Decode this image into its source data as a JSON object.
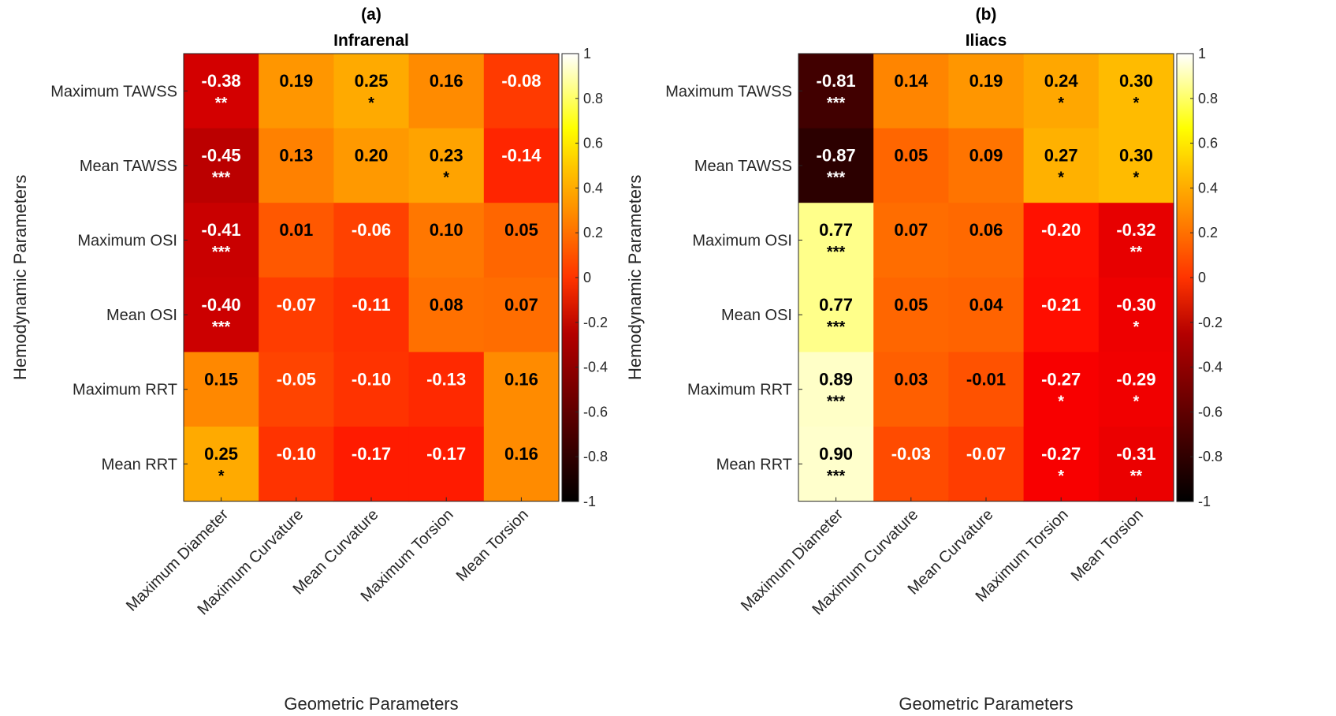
{
  "figure": {
    "shared_row_labels": [
      "Maximum TAWSS",
      "Mean TAWSS",
      "Maximum OSI",
      "Mean OSI",
      "Maximum RRT",
      "Mean RRT"
    ],
    "shared_col_labels": [
      "Maximum Diameter",
      "Maximum Curvature",
      "Mean Curvature",
      "Maximum Torsion",
      "Mean Torsion"
    ]
  },
  "chart_data": [
    {
      "type": "heatmap",
      "panel": "(a)",
      "title": "Infrarenal",
      "xlabel": "Geometric Parameters",
      "ylabel": "Hemodynamic Parameters",
      "rows": [
        "Maximum TAWSS",
        "Mean TAWSS",
        "Maximum OSI",
        "Mean OSI",
        "Maximum RRT",
        "Mean RRT"
      ],
      "columns": [
        "Maximum Diameter",
        "Maximum Curvature",
        "Mean Curvature",
        "Maximum Torsion",
        "Mean Torsion"
      ],
      "values": [
        [
          -0.38,
          0.19,
          0.25,
          0.16,
          -0.08
        ],
        [
          -0.45,
          0.13,
          0.2,
          0.23,
          -0.14
        ],
        [
          -0.41,
          0.01,
          -0.06,
          0.1,
          0.05
        ],
        [
          -0.4,
          -0.07,
          -0.11,
          0.08,
          0.07
        ],
        [
          0.15,
          -0.05,
          -0.1,
          -0.13,
          0.16
        ],
        [
          0.25,
          -0.1,
          -0.17,
          -0.17,
          0.16
        ]
      ],
      "labels": [
        [
          "-0.38",
          "0.19",
          "0.25",
          "0.16",
          "-0.08"
        ],
        [
          "-0.45",
          "0.13",
          "0.20",
          "0.23",
          "-0.14"
        ],
        [
          "-0.41",
          "0.01",
          "-0.06",
          "0.10",
          "0.05"
        ],
        [
          "-0.40",
          "-0.07",
          "-0.11",
          "0.08",
          "0.07"
        ],
        [
          "0.15",
          "-0.05",
          "-0.10",
          "-0.13",
          "0.16"
        ],
        [
          "0.25",
          "-0.10",
          "-0.17",
          "-0.17",
          "0.16"
        ]
      ],
      "significance": [
        [
          "**",
          "",
          "*",
          "",
          ""
        ],
        [
          "***",
          "",
          "",
          "*",
          ""
        ],
        [
          "***",
          "",
          "",
          "",
          ""
        ],
        [
          "***",
          "",
          "",
          "",
          ""
        ],
        [
          "",
          "",
          "",
          "",
          ""
        ],
        [
          "*",
          "",
          "",
          "",
          ""
        ]
      ],
      "colorbar": {
        "range": [
          -1,
          1
        ],
        "ticks": [
          "1",
          "0.8",
          "0.6",
          "0.4",
          "0.2",
          "0",
          "-0.2",
          "-0.4",
          "-0.6",
          "-0.8",
          "-1"
        ],
        "colormap": "hot"
      }
    },
    {
      "type": "heatmap",
      "panel": "(b)",
      "title": "Iliacs",
      "xlabel": "Geometric Parameters",
      "ylabel": "Hemodynamic Parameters",
      "rows": [
        "Maximum TAWSS",
        "Mean TAWSS",
        "Maximum OSI",
        "Mean OSI",
        "Maximum RRT",
        "Mean RRT"
      ],
      "columns": [
        "Maximum Diameter",
        "Maximum Curvature",
        "Mean Curvature",
        "Maximum Torsion",
        "Mean Torsion"
      ],
      "values": [
        [
          -0.81,
          0.14,
          0.19,
          0.24,
          0.3
        ],
        [
          -0.87,
          0.05,
          0.09,
          0.27,
          0.3
        ],
        [
          0.77,
          0.07,
          0.06,
          -0.2,
          -0.32
        ],
        [
          0.77,
          0.05,
          0.04,
          -0.21,
          -0.3
        ],
        [
          0.89,
          0.03,
          -0.01,
          -0.27,
          -0.29
        ],
        [
          0.9,
          -0.03,
          -0.07,
          -0.27,
          -0.31
        ]
      ],
      "labels": [
        [
          "-0.81",
          "0.14",
          "0.19",
          "0.24",
          "0.30"
        ],
        [
          "-0.87",
          "0.05",
          "0.09",
          "0.27",
          "0.30"
        ],
        [
          "0.77",
          "0.07",
          "0.06",
          "-0.20",
          "-0.32"
        ],
        [
          "0.77",
          "0.05",
          "0.04",
          "-0.21",
          "-0.30"
        ],
        [
          "0.89",
          "0.03",
          "-0.01",
          "-0.27",
          "-0.29"
        ],
        [
          "0.90",
          "-0.03",
          "-0.07",
          "-0.27",
          "-0.31"
        ]
      ],
      "significance": [
        [
          "***",
          "",
          "",
          "*",
          "*"
        ],
        [
          "***",
          "",
          "",
          "*",
          "*"
        ],
        [
          "***",
          "",
          "",
          "",
          "**"
        ],
        [
          "***",
          "",
          "",
          "",
          "*"
        ],
        [
          "***",
          "",
          "",
          "*",
          "*"
        ],
        [
          "***",
          "",
          "",
          "*",
          "**"
        ]
      ],
      "colorbar": {
        "range": [
          -1,
          1
        ],
        "ticks": [
          "1",
          "0.8",
          "0.6",
          "0.4",
          "0.2",
          "0",
          "-0.2",
          "-0.4",
          "-0.6",
          "-0.8",
          "-1"
        ],
        "colormap": "hot"
      }
    }
  ]
}
